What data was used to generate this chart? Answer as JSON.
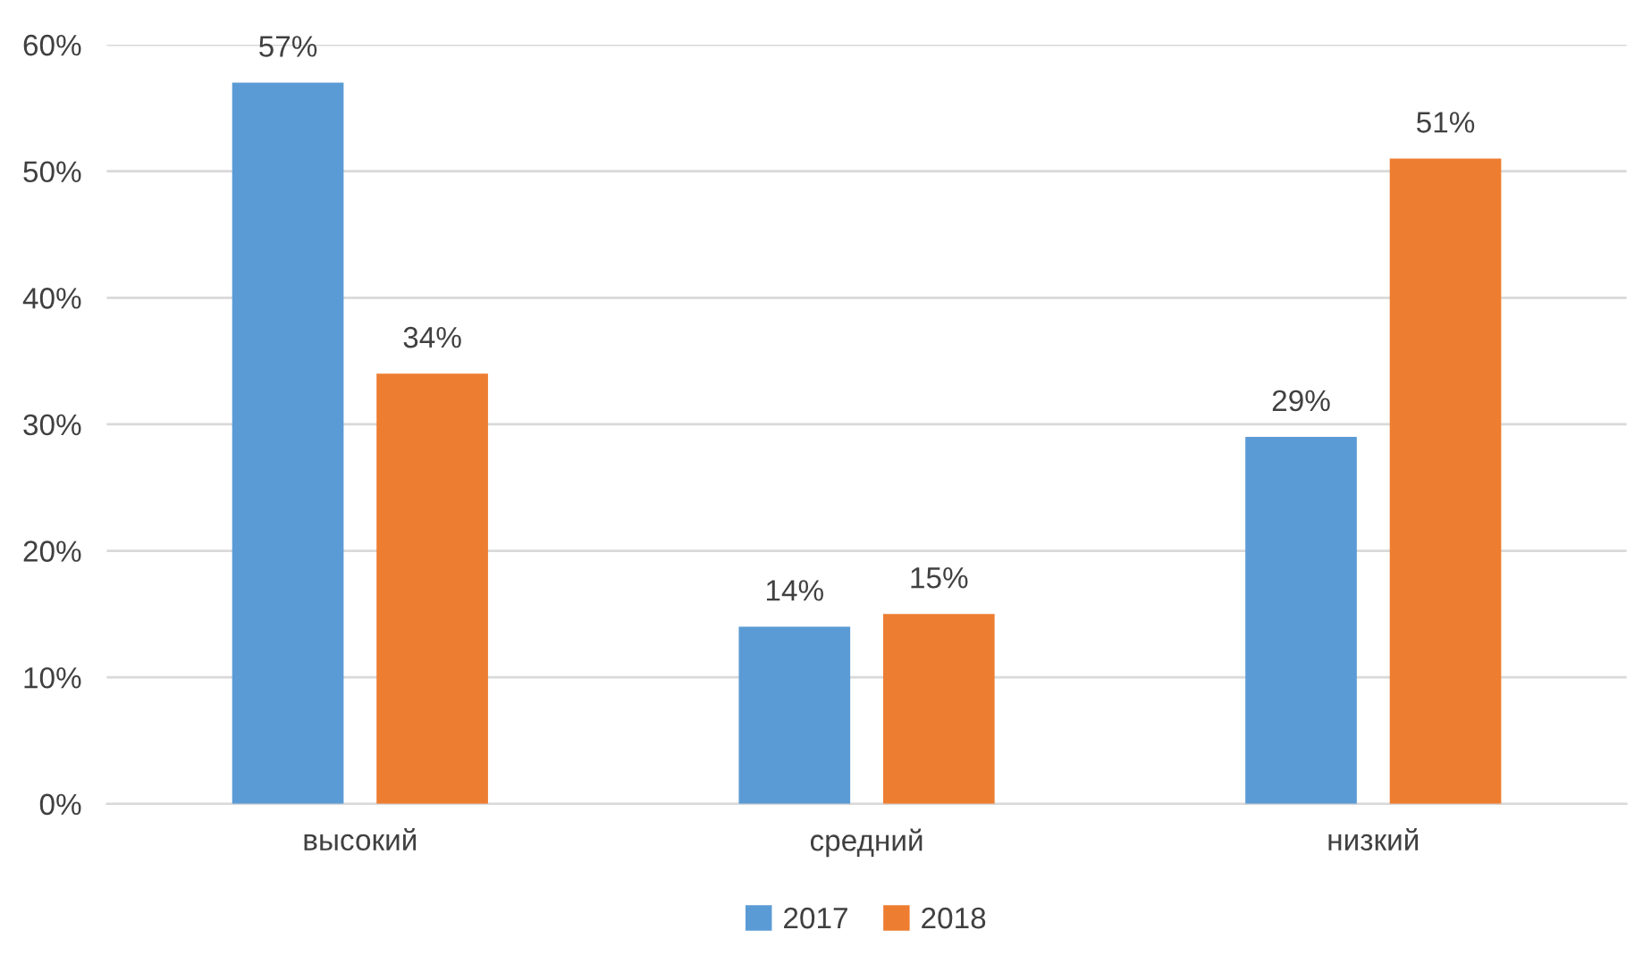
{
  "chart_data": {
    "type": "bar",
    "categories": [
      "высокий",
      "средний",
      "низкий"
    ],
    "series": [
      {
        "name": "2017",
        "color": "#5b9bd5",
        "values": [
          57,
          14,
          29
        ],
        "value_labels": [
          "57%",
          "14%",
          "29%"
        ]
      },
      {
        "name": "2018",
        "color": "#ed7d31",
        "values": [
          34,
          15,
          51
        ],
        "value_labels": [
          "34%",
          "15%",
          "51%"
        ]
      }
    ],
    "ylim": [
      0,
      60
    ],
    "yticks": [
      {
        "value": 0,
        "label": "0%"
      },
      {
        "value": 10,
        "label": "10%"
      },
      {
        "value": 20,
        "label": "20%"
      },
      {
        "value": 30,
        "label": "30%"
      },
      {
        "value": 40,
        "label": "40%"
      },
      {
        "value": 50,
        "label": "50%"
      },
      {
        "value": 60,
        "label": "60%"
      }
    ],
    "grid": "y",
    "legend": "bottom"
  }
}
